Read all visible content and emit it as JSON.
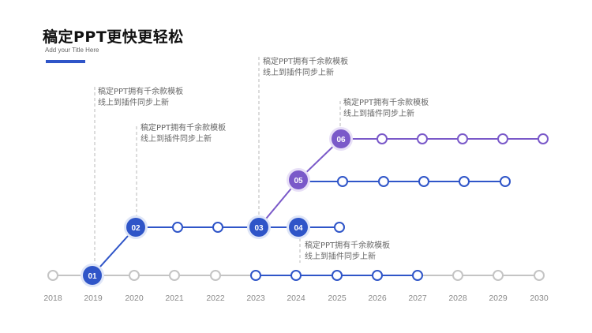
{
  "header": {
    "title": "稿定PPT更快更轻松",
    "subtitle": "Add your Title Here",
    "accent_color": "#2f55c8"
  },
  "colors": {
    "axis_gray": "#c4c4c4",
    "blue": "#2f55c8",
    "purple": "#7a59c9"
  },
  "timeline": {
    "years": [
      "2018",
      "2019",
      "2020",
      "2021",
      "2022",
      "2023",
      "2024",
      "2025",
      "2026",
      "2027",
      "2028",
      "2029",
      "2030"
    ],
    "milestones": [
      {
        "label": "01",
        "year": "2019",
        "level": 0,
        "color": "blue"
      },
      {
        "label": "02",
        "year": "2020",
        "level": 1,
        "color": "blue"
      },
      {
        "label": "03",
        "year": "2023",
        "level": 1,
        "color": "blue"
      },
      {
        "label": "04",
        "year": "2024",
        "level": 1,
        "color": "blue"
      },
      {
        "label": "05",
        "year": "2024",
        "level": 2,
        "color": "purple"
      },
      {
        "label": "06",
        "year": "2025",
        "level": 3,
        "color": "purple"
      }
    ]
  },
  "callouts": [
    {
      "line1": "稿定PPT拥有千余款模板",
      "line2": "线上到插件同步上新"
    },
    {
      "line1": "稿定PPT拥有千余款模板",
      "line2": "线上到插件同步上新"
    },
    {
      "line1": "稿定PPT拥有千余款模板",
      "line2": "线上到插件同步上新"
    },
    {
      "line1": "稿定PPT拥有千余款模板",
      "line2": "线上到插件同步上新"
    },
    {
      "line1": "稿定PPT拥有千余款模板",
      "line2": "线上到插件同步上新"
    }
  ]
}
